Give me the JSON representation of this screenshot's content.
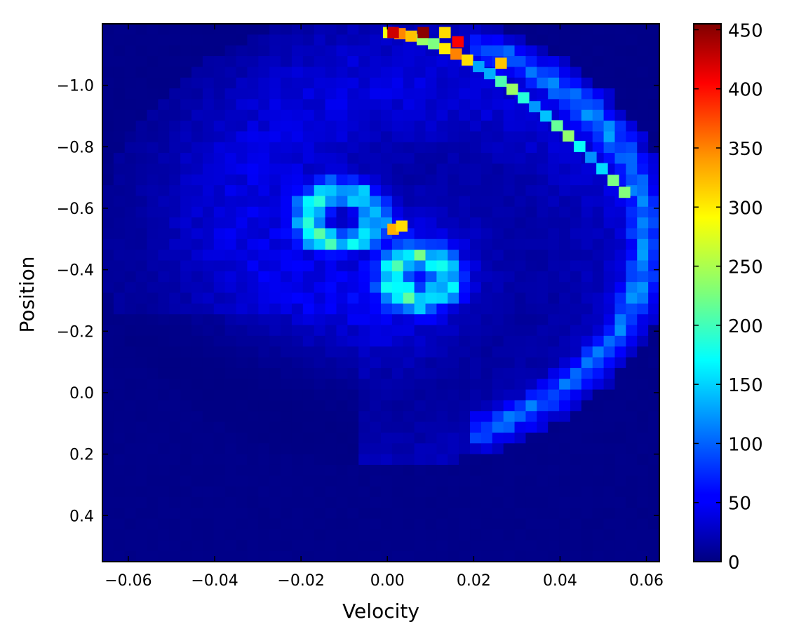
{
  "chart_data": {
    "type": "heatmap",
    "title": "",
    "xlabel": "Velocity",
    "ylabel": "Position",
    "xlim": [
      -0.066,
      0.063
    ],
    "ylim": [
      -1.2,
      0.55
    ],
    "y_inverted": true,
    "colormap": "jet",
    "colorbar": {
      "min": 0,
      "max": 455,
      "ticks": [
        "0",
        "50",
        "100",
        "150",
        "200",
        "250",
        "300",
        "350",
        "400",
        "450"
      ]
    },
    "x_ticks": [
      "−0.06",
      "−0.04",
      "−0.02",
      "0.00",
      "0.02",
      "0.04",
      "0.06"
    ],
    "x_tick_values": [
      -0.06,
      -0.04,
      -0.02,
      0.0,
      0.02,
      0.04,
      0.06
    ],
    "y_ticks": [
      "−1.0",
      "−0.8",
      "−0.6",
      "−0.4",
      "−0.2",
      "0.0",
      "0.2",
      "0.4"
    ],
    "y_tick_values": [
      -1.0,
      -0.8,
      -0.6,
      -0.4,
      -0.2,
      0.0,
      0.2,
      0.4
    ],
    "grid": false,
    "bins": [
      50,
      50
    ],
    "hotspots": [
      {
        "velocity": 0.0,
        "position": -1.19,
        "count": 420
      },
      {
        "velocity": 0.007,
        "position": -1.19,
        "count": 450
      },
      {
        "velocity": 0.012,
        "position": -1.19,
        "count": 300
      },
      {
        "velocity": 0.015,
        "position": -1.16,
        "count": 400
      },
      {
        "velocity": 0.025,
        "position": -1.09,
        "count": 310
      },
      {
        "velocity": 0.0,
        "position": -0.55,
        "count": 320
      },
      {
        "velocity": 0.002,
        "position": -0.56,
        "count": 300
      }
    ]
  }
}
